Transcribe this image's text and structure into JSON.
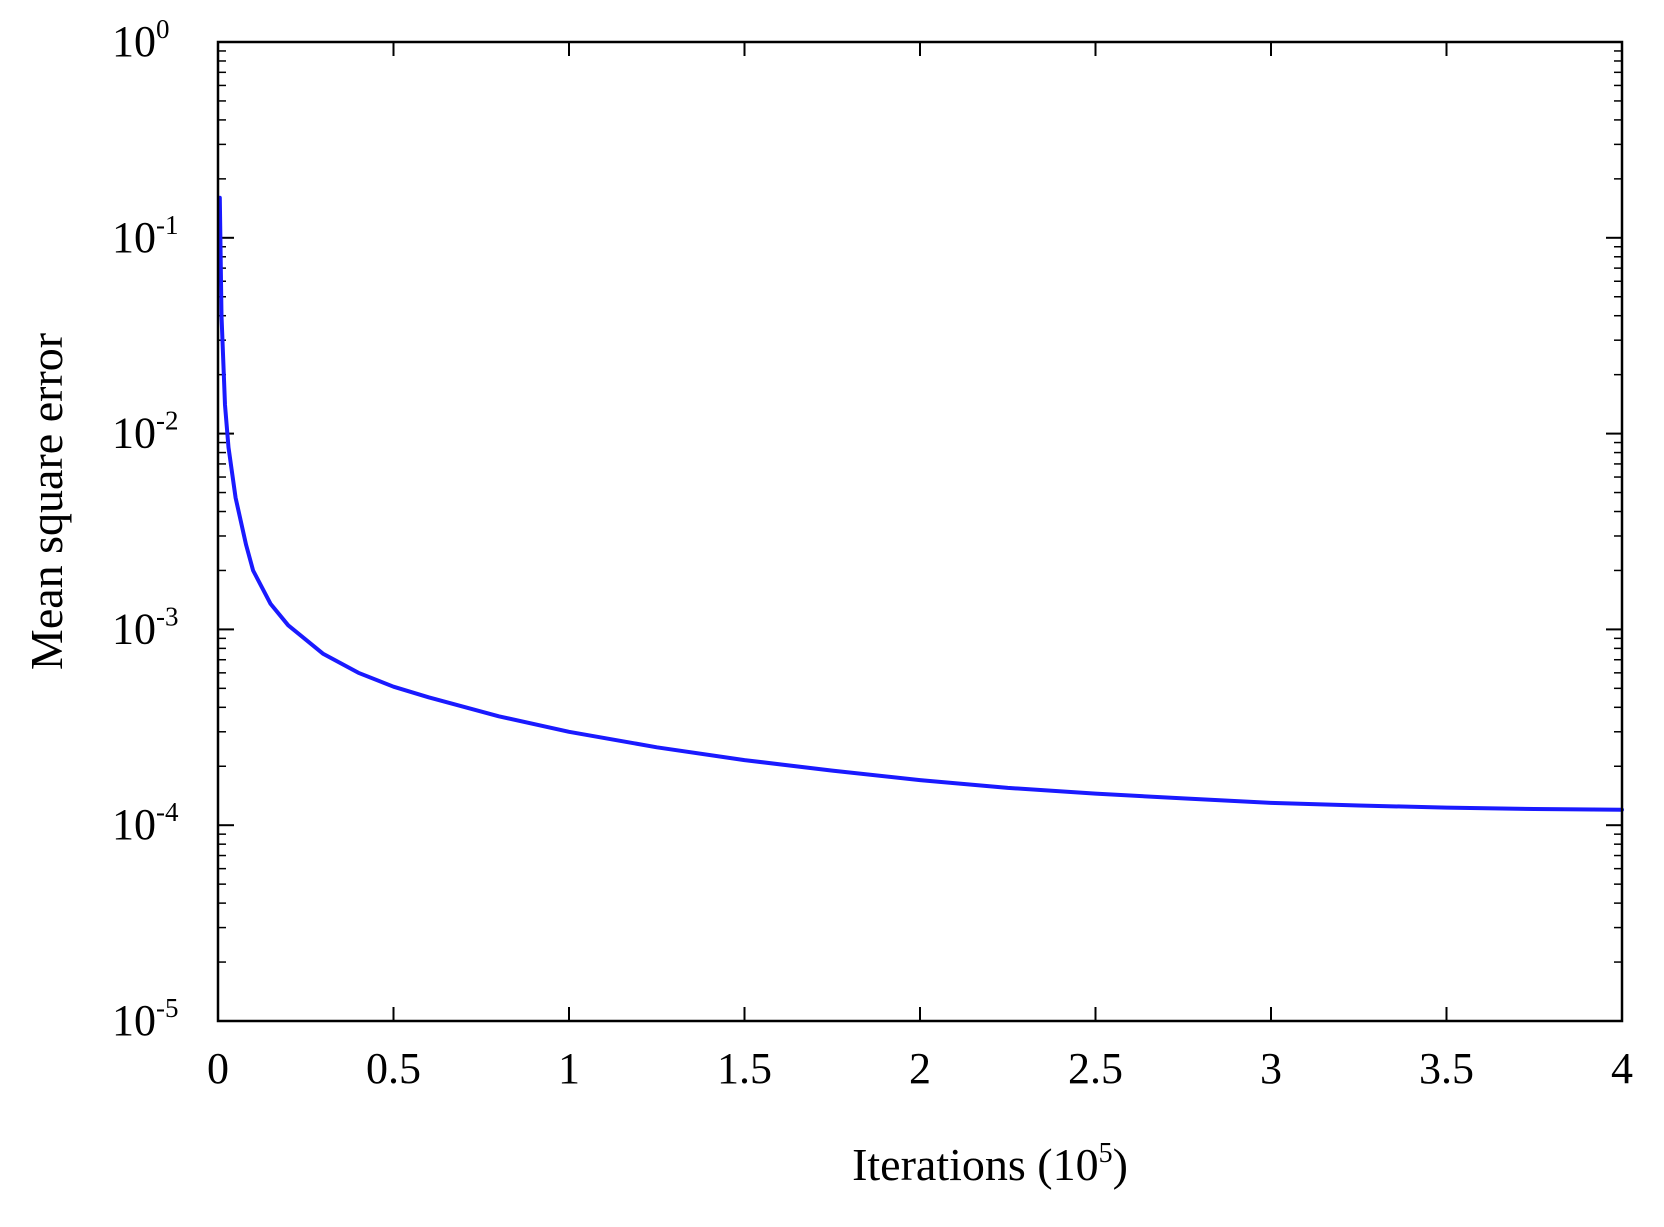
{
  "chart_data": {
    "type": "line",
    "title": "",
    "xlabel": "Iterations (10",
    "xlabel_exp": "5",
    "xlabel_close": ")",
    "ylabel": "Mean square error",
    "x_scale": "linear",
    "y_scale": "log",
    "xlim": [
      0,
      4
    ],
    "ylim": [
      1e-05,
      1
    ],
    "grid": false,
    "legend": "none",
    "x_ticks": [
      "0",
      "0.5",
      "1",
      "1.5",
      "2",
      "2.5",
      "3",
      "3.5",
      "4"
    ],
    "x_tick_values": [
      0,
      0.5,
      1,
      1.5,
      2,
      2.5,
      3,
      3.5,
      4
    ],
    "y_ticks": [
      {
        "base": "10",
        "exp": "0",
        "value": 1
      },
      {
        "base": "10",
        "exp": "-1",
        "value": 0.1
      },
      {
        "base": "10",
        "exp": "-2",
        "value": 0.01
      },
      {
        "base": "10",
        "exp": "-3",
        "value": 0.001
      },
      {
        "base": "10",
        "exp": "-4",
        "value": 0.0001
      },
      {
        "base": "10",
        "exp": "-5",
        "value": 1e-05
      }
    ],
    "series": [
      {
        "color": "#1a1aff",
        "x": [
          0.005,
          0.01,
          0.02,
          0.03,
          0.05,
          0.08,
          0.1,
          0.15,
          0.2,
          0.3,
          0.4,
          0.5,
          0.6,
          0.8,
          1.0,
          1.25,
          1.5,
          1.75,
          2.0,
          2.25,
          2.5,
          2.75,
          3.0,
          3.25,
          3.5,
          3.75,
          4.0
        ],
        "y": [
          0.16,
          0.04,
          0.014,
          0.0085,
          0.0047,
          0.0027,
          0.002,
          0.00135,
          0.00105,
          0.00075,
          0.0006,
          0.00051,
          0.00045,
          0.00036,
          0.0003,
          0.00025,
          0.000215,
          0.00019,
          0.00017,
          0.000155,
          0.000145,
          0.000137,
          0.00013,
          0.000126,
          0.000123,
          0.000121,
          0.00012
        ]
      }
    ]
  }
}
